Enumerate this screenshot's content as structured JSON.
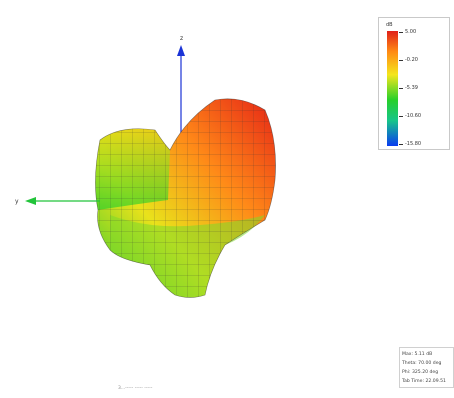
{
  "axes": {
    "z_label": "z",
    "y_label": "y"
  },
  "legend": {
    "unit": "dB",
    "ticks": [
      "5.00",
      "-0.20",
      "-5.39",
      "-10.60",
      "-15.80"
    ],
    "colors": {
      "max": "#e0201a",
      "mid": "#f4e61c",
      "low": "#27d02a",
      "min": "#0a3cf0"
    }
  },
  "info": {
    "lines": [
      "Max: 5.11 dB",
      "Theta: 70.00 deg",
      "Phi: 325.20 deg",
      "Tab Time: 22.09.51"
    ]
  },
  "caption": "3...----- ----- -----"
}
